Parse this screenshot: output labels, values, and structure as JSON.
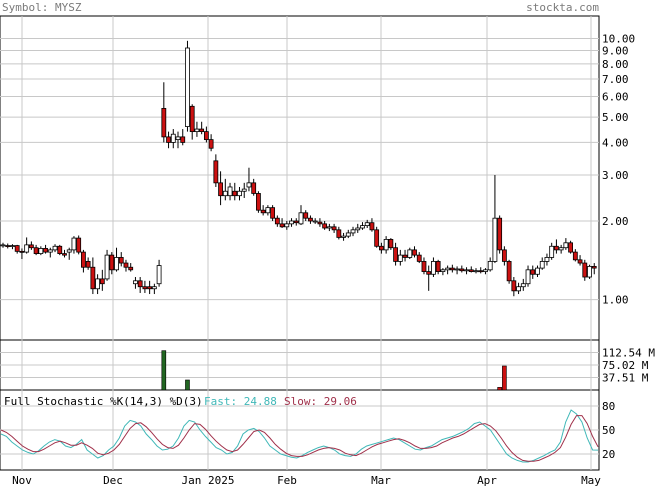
{
  "header": {
    "symbol_text": "Symbol: MYSZ",
    "site_text": "stockta.com"
  },
  "colors": {
    "up": "#ffffff",
    "down": "#cc1111",
    "candle_outline": "#000000",
    "vol_up": "#226622",
    "vol_down": "#cc1111",
    "fast": "#40b8b8",
    "slow": "#a0304a",
    "grid": "#c8c8c8",
    "frame": "#000000"
  },
  "stoch": {
    "title": "Full Stochastic %K(14,3) %D(3)",
    "fast_label": "Fast: 24.88",
    "slow_label": "Slow: 29.06"
  },
  "chart_data": [
    {
      "type": "candlestick",
      "yscale": "log",
      "ylim": [
        0.7,
        12.2
      ],
      "y_ticks": [
        "10.00",
        "9.00",
        "8.00",
        "7.00",
        "6.00",
        "5.00",
        "4.00",
        "3.00",
        "2.00",
        "1.00"
      ],
      "x_ticks": [
        "Nov",
        "Dec",
        "Jan 2025",
        "Feb",
        "Mar",
        "Apr",
        "May"
      ],
      "grid": true,
      "ohlc": [
        [
          1.62,
          1.65,
          1.58,
          1.62
        ],
        [
          1.61,
          1.64,
          1.57,
          1.6
        ],
        [
          1.6,
          1.63,
          1.56,
          1.61
        ],
        [
          1.61,
          1.62,
          1.5,
          1.53
        ],
        [
          1.53,
          1.57,
          1.43,
          1.52
        ],
        [
          1.52,
          1.73,
          1.5,
          1.62
        ],
        [
          1.62,
          1.67,
          1.55,
          1.58
        ],
        [
          1.58,
          1.62,
          1.48,
          1.5
        ],
        [
          1.5,
          1.6,
          1.48,
          1.57
        ],
        [
          1.57,
          1.62,
          1.5,
          1.52
        ],
        [
          1.52,
          1.58,
          1.45,
          1.55
        ],
        [
          1.55,
          1.63,
          1.52,
          1.6
        ],
        [
          1.6,
          1.62,
          1.48,
          1.5
        ],
        [
          1.5,
          1.55,
          1.45,
          1.48
        ],
        [
          1.52,
          1.58,
          1.42,
          1.55
        ],
        [
          1.55,
          1.75,
          1.5,
          1.72
        ],
        [
          1.72,
          1.76,
          1.49,
          1.52
        ],
        [
          1.52,
          1.55,
          1.27,
          1.33
        ],
        [
          1.4,
          1.45,
          1.3,
          1.33
        ],
        [
          1.33,
          1.45,
          1.05,
          1.1
        ],
        [
          1.1,
          1.25,
          1.05,
          1.2
        ],
        [
          1.2,
          1.3,
          1.08,
          1.15
        ],
        [
          1.2,
          1.55,
          1.18,
          1.48
        ],
        [
          1.48,
          1.52,
          1.25,
          1.3
        ],
        [
          1.3,
          1.58,
          1.28,
          1.45
        ],
        [
          1.45,
          1.52,
          1.34,
          1.38
        ],
        [
          1.38,
          1.42,
          1.28,
          1.33
        ],
        [
          1.33,
          1.38,
          1.28,
          1.3
        ],
        [
          1.15,
          1.22,
          1.1,
          1.18
        ],
        [
          1.18,
          1.22,
          1.06,
          1.12
        ],
        [
          1.12,
          1.18,
          1.06,
          1.1
        ],
        [
          1.12,
          1.18,
          1.05,
          1.1
        ],
        [
          1.1,
          1.15,
          1.05,
          1.12
        ],
        [
          1.15,
          1.42,
          1.12,
          1.35
        ],
        [
          5.4,
          6.8,
          4.0,
          4.2
        ],
        [
          4.2,
          4.4,
          3.8,
          4.0
        ],
        [
          4.0,
          4.5,
          3.8,
          4.3
        ],
        [
          4.1,
          4.4,
          3.8,
          4.2
        ],
        [
          4.2,
          4.5,
          3.9,
          4.0
        ],
        [
          4.6,
          9.8,
          4.4,
          9.2
        ],
        [
          5.5,
          5.6,
          4.1,
          4.4
        ],
        [
          4.4,
          4.8,
          4.2,
          4.5
        ],
        [
          4.5,
          4.8,
          4.3,
          4.4
        ],
        [
          4.4,
          4.6,
          4.0,
          4.1
        ],
        [
          4.1,
          4.3,
          3.7,
          3.8
        ],
        [
          3.4,
          3.6,
          2.7,
          2.8
        ],
        [
          2.8,
          3.1,
          2.3,
          2.5
        ],
        [
          2.5,
          2.9,
          2.4,
          2.6
        ],
        [
          2.5,
          2.8,
          2.4,
          2.7
        ],
        [
          2.6,
          2.8,
          2.4,
          2.5
        ],
        [
          2.5,
          2.7,
          2.4,
          2.6
        ],
        [
          2.6,
          2.8,
          2.45,
          2.65
        ],
        [
          2.7,
          3.2,
          2.6,
          2.8
        ],
        [
          2.8,
          2.9,
          2.5,
          2.55
        ],
        [
          2.55,
          2.6,
          2.15,
          2.2
        ],
        [
          2.2,
          2.3,
          2.1,
          2.15
        ],
        [
          2.15,
          2.3,
          2.1,
          2.25
        ],
        [
          2.25,
          2.3,
          2.0,
          2.05
        ],
        [
          2.05,
          2.1,
          1.9,
          1.95
        ],
        [
          1.95,
          2.05,
          1.88,
          1.9
        ],
        [
          1.9,
          2.0,
          1.85,
          1.95
        ],
        [
          1.95,
          2.05,
          1.9,
          2.0
        ],
        [
          2.0,
          2.05,
          1.92,
          1.97
        ],
        [
          1.95,
          2.3,
          1.93,
          2.15
        ],
        [
          2.15,
          2.2,
          2.0,
          2.05
        ],
        [
          2.05,
          2.1,
          1.95,
          2.0
        ],
        [
          2.0,
          2.05,
          1.95,
          2.0
        ],
        [
          1.98,
          2.05,
          1.9,
          1.95
        ],
        [
          1.95,
          2.0,
          1.85,
          1.88
        ],
        [
          1.88,
          1.95,
          1.83,
          1.9
        ],
        [
          1.9,
          1.95,
          1.8,
          1.85
        ],
        [
          1.85,
          1.9,
          1.7,
          1.73
        ],
        [
          1.73,
          1.8,
          1.68,
          1.75
        ],
        [
          1.75,
          1.85,
          1.72,
          1.8
        ],
        [
          1.8,
          1.9,
          1.75,
          1.85
        ],
        [
          1.85,
          1.95,
          1.8,
          1.88
        ],
        [
          1.88,
          1.98,
          1.85,
          1.92
        ],
        [
          1.92,
          2.02,
          1.88,
          1.97
        ],
        [
          1.97,
          2.05,
          1.82,
          1.85
        ],
        [
          1.85,
          1.9,
          1.58,
          1.6
        ],
        [
          1.6,
          1.65,
          1.5,
          1.55
        ],
        [
          1.55,
          1.75,
          1.5,
          1.7
        ],
        [
          1.7,
          1.72,
          1.55,
          1.58
        ],
        [
          1.58,
          1.65,
          1.35,
          1.4
        ],
        [
          1.4,
          1.55,
          1.35,
          1.48
        ],
        [
          1.48,
          1.55,
          1.4,
          1.45
        ],
        [
          1.45,
          1.58,
          1.43,
          1.55
        ],
        [
          1.55,
          1.6,
          1.45,
          1.48
        ],
        [
          1.48,
          1.52,
          1.38,
          1.4
        ],
        [
          1.4,
          1.45,
          1.25,
          1.28
        ],
        [
          1.28,
          1.35,
          1.08,
          1.25
        ],
        [
          1.25,
          1.45,
          1.22,
          1.4
        ],
        [
          1.4,
          1.42,
          1.25,
          1.28
        ],
        [
          1.28,
          1.32,
          1.24,
          1.3
        ],
        [
          1.3,
          1.35,
          1.25,
          1.32
        ],
        [
          1.32,
          1.36,
          1.27,
          1.3
        ],
        [
          1.3,
          1.34,
          1.25,
          1.31
        ],
        [
          1.31,
          1.35,
          1.27,
          1.29
        ],
        [
          1.29,
          1.33,
          1.25,
          1.3
        ],
        [
          1.3,
          1.34,
          1.27,
          1.28
        ],
        [
          1.28,
          1.32,
          1.26,
          1.29
        ],
        [
          1.29,
          1.33,
          1.26,
          1.28
        ],
        [
          1.28,
          1.32,
          1.25,
          1.3
        ],
        [
          1.3,
          1.45,
          1.28,
          1.4
        ],
        [
          1.4,
          3.0,
          1.38,
          2.05
        ],
        [
          2.05,
          2.1,
          1.5,
          1.55
        ],
        [
          1.55,
          1.6,
          1.35,
          1.4
        ],
        [
          1.4,
          1.42,
          1.15,
          1.18
        ],
        [
          1.18,
          1.22,
          1.03,
          1.08
        ],
        [
          1.08,
          1.16,
          1.05,
          1.12
        ],
        [
          1.12,
          1.2,
          1.08,
          1.15
        ],
        [
          1.15,
          1.35,
          1.12,
          1.3
        ],
        [
          1.3,
          1.35,
          1.2,
          1.25
        ],
        [
          1.25,
          1.35,
          1.22,
          1.32
        ],
        [
          1.32,
          1.45,
          1.3,
          1.4
        ],
        [
          1.4,
          1.5,
          1.35,
          1.45
        ],
        [
          1.45,
          1.65,
          1.42,
          1.6
        ],
        [
          1.6,
          1.7,
          1.5,
          1.55
        ],
        [
          1.55,
          1.62,
          1.5,
          1.58
        ],
        [
          1.58,
          1.72,
          1.55,
          1.65
        ],
        [
          1.65,
          1.68,
          1.5,
          1.52
        ],
        [
          1.52,
          1.56,
          1.4,
          1.42
        ],
        [
          1.42,
          1.48,
          1.35,
          1.38
        ],
        [
          1.38,
          1.42,
          1.18,
          1.22
        ],
        [
          1.22,
          1.36,
          1.2,
          1.34
        ],
        [
          1.34,
          1.38,
          1.25,
          1.32
        ]
      ]
    },
    {
      "type": "bar",
      "series_label": "volume",
      "y_ticks": [
        "112.54 M",
        "75.02 M",
        "37.51 M"
      ],
      "ylim": [
        0,
        150
      ],
      "spikes": [
        {
          "bar_index": 34,
          "value": 118,
          "up": true
        },
        {
          "bar_index": 39,
          "value": 30,
          "up": true
        },
        {
          "bar_index": 105,
          "value": 8,
          "up": false
        },
        {
          "bar_index": 106,
          "value": 72,
          "up": false
        }
      ]
    },
    {
      "type": "line",
      "ylim": [
        0,
        100
      ],
      "y_ticks": [
        "80",
        "50",
        "20"
      ],
      "series": [
        {
          "name": "Fast",
          "values": [
            45,
            42,
            35,
            30,
            25,
            22,
            20,
            24,
            30,
            35,
            38,
            36,
            30,
            28,
            32,
            38,
            25,
            20,
            15,
            18,
            25,
            30,
            40,
            55,
            62,
            60,
            55,
            45,
            38,
            30,
            25,
            26,
            30,
            40,
            55,
            62,
            60,
            50,
            42,
            35,
            28,
            25,
            20,
            22,
            30,
            45,
            50,
            52,
            48,
            40,
            30,
            25,
            20,
            18,
            16,
            15,
            18,
            22,
            25,
            28,
            30,
            28,
            25,
            20,
            18,
            17,
            20,
            26,
            30,
            32,
            34,
            36,
            38,
            40,
            38,
            34,
            30,
            26,
            25,
            28,
            30,
            34,
            38,
            40,
            42,
            45,
            48,
            52,
            58,
            60,
            55,
            50,
            40,
            30,
            20,
            15,
            12,
            10,
            10,
            12,
            15,
            18,
            22,
            25,
            35,
            60,
            75,
            70,
            60,
            40,
            25,
            24.88
          ]
        },
        {
          "name": "Slow",
          "values": [
            50,
            47,
            42,
            36,
            30,
            26,
            23,
            23,
            26,
            30,
            34,
            36,
            34,
            31,
            31,
            34,
            31,
            27,
            21,
            19,
            21,
            25,
            32,
            42,
            52,
            58,
            59,
            54,
            47,
            39,
            32,
            28,
            27,
            31,
            40,
            50,
            58,
            57,
            51,
            43,
            36,
            30,
            25,
            23,
            25,
            32,
            40,
            48,
            50,
            47,
            40,
            32,
            26,
            21,
            18,
            17,
            17,
            19,
            22,
            25,
            27,
            28,
            27,
            25,
            21,
            19,
            18,
            21,
            25,
            29,
            32,
            34,
            36,
            38,
            39,
            37,
            34,
            30,
            27,
            27,
            28,
            30,
            34,
            37,
            40,
            42,
            45,
            49,
            53,
            57,
            58,
            55,
            49,
            40,
            30,
            22,
            16,
            12,
            11,
            11,
            12,
            15,
            18,
            22,
            28,
            41,
            57,
            68,
            68,
            58,
            42,
            29.06
          ]
        }
      ]
    }
  ]
}
